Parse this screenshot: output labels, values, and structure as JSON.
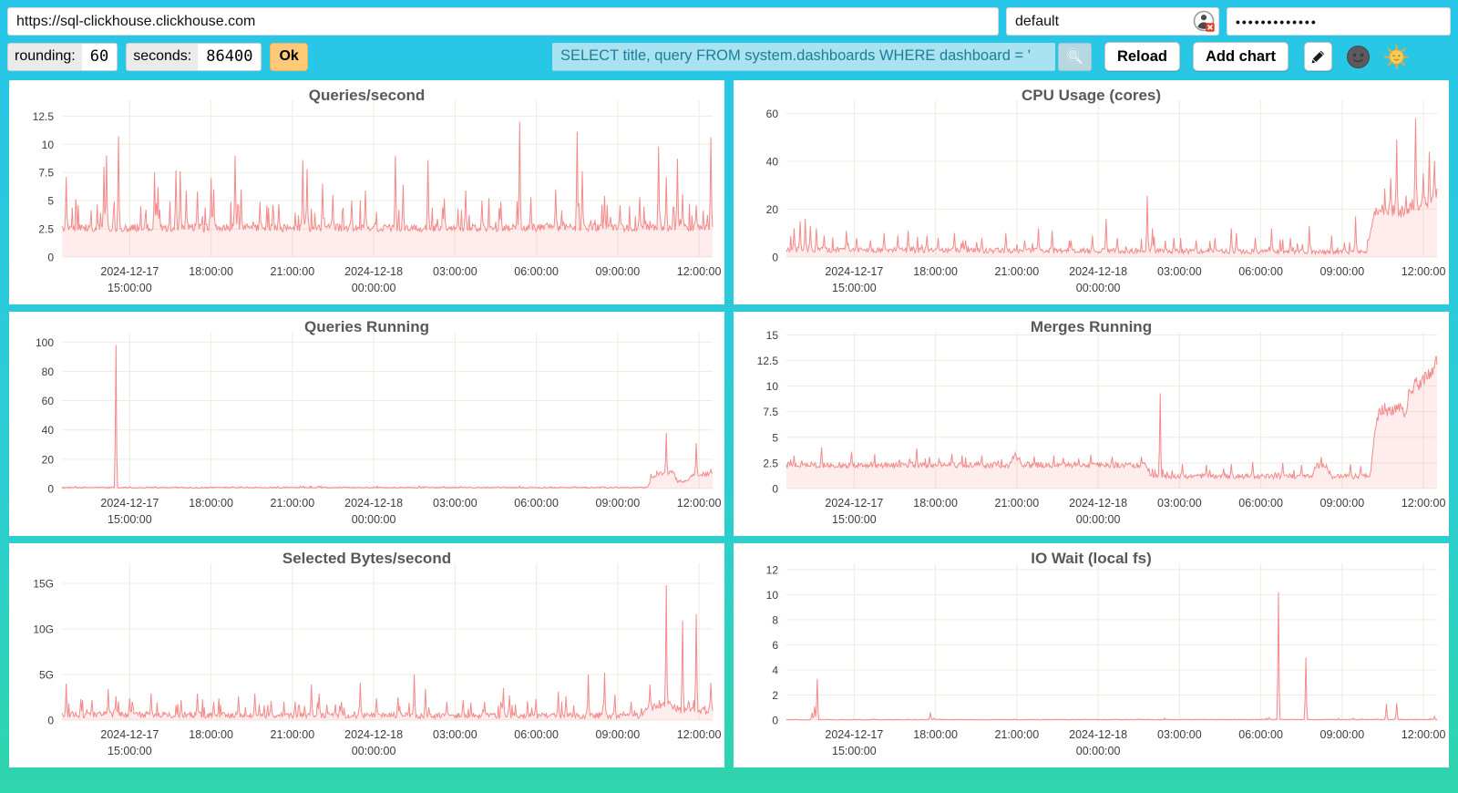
{
  "address_bar": {
    "url": "https://sql-clickhouse.clickhouse.com",
    "user": "default",
    "password_masked": "•••••••••••••",
    "password_manager_icon": "user-badge-x"
  },
  "toolbar": {
    "rounding_label": "rounding:",
    "rounding_value": "60",
    "seconds_label": "seconds:",
    "seconds_value": "86400",
    "ok_label": "Ok",
    "query_value": "SELECT title, query FROM system.dashboards WHERE dashboard = '",
    "search_icon": "magnifier",
    "reload_label": "Reload",
    "add_chart_label": "Add chart",
    "edit_icon": "pencil",
    "theme_dark_icon": "moon-face",
    "theme_light_icon": "sun-face"
  },
  "colors": {
    "background_top": "#27C6E9",
    "background_bottom": "#2FD5AC",
    "line": "#F28B8B",
    "fill": "rgba(255,136,136,0.16)",
    "grid": "#EDECDF",
    "axis_text": "#3C3C3C",
    "title_text": "#585858",
    "query_bg": "#A9E2F1",
    "query_text": "#1F7D99",
    "ok_bg": "#FFC978"
  },
  "x_axis": {
    "window_hours": 24,
    "window_start": "2024-12-17 12:30:00",
    "tick_hours": [
      2.5,
      5.5,
      8.5,
      11.5,
      14.5,
      17.5,
      20.5,
      23.5
    ],
    "tick_labels": [
      [
        "2024-12-17",
        "15:00:00"
      ],
      [
        "18:00:00"
      ],
      [
        "21:00:00"
      ],
      [
        "2024-12-18",
        "00:00:00"
      ],
      [
        "03:00:00"
      ],
      [
        "06:00:00"
      ],
      [
        "09:00:00"
      ],
      [
        "12:00:00"
      ]
    ]
  },
  "chart_data": [
    {
      "type": "area",
      "title": "Queries/second",
      "ymax": 13.9,
      "yticks": [
        0,
        2.5,
        5,
        7.5,
        10,
        12.5
      ],
      "ytick_labels": [
        "0",
        "2.5",
        "5",
        "7.5",
        "10",
        "12.5"
      ],
      "baseline": [
        [
          0,
          2.6
        ],
        [
          24,
          2.6
        ]
      ],
      "noise": {
        "amp": 0.35,
        "amp_rel": 0,
        "spike_prob": 0.12,
        "spike_amp": 2.4
      },
      "spikes": [
        [
          0.15,
          7.1
        ],
        [
          1.55,
          8.0
        ],
        [
          1.65,
          9.0
        ],
        [
          2.1,
          10.7
        ],
        [
          3.4,
          7.5
        ],
        [
          3.55,
          6.2
        ],
        [
          4.2,
          7.7
        ],
        [
          4.35,
          7.6
        ],
        [
          4.6,
          5.9
        ],
        [
          5.0,
          5.8
        ],
        [
          5.5,
          7.0
        ],
        [
          5.6,
          6.0
        ],
        [
          6.4,
          9.0
        ],
        [
          6.6,
          6.0
        ],
        [
          7.3,
          4.9
        ],
        [
          8.0,
          4.7
        ],
        [
          8.9,
          8.6
        ],
        [
          9.05,
          7.8
        ],
        [
          9.6,
          6.5
        ],
        [
          10.0,
          5.5
        ],
        [
          10.7,
          5.0
        ],
        [
          11.2,
          5.9
        ],
        [
          12.3,
          9.0
        ],
        [
          12.6,
          6.4
        ],
        [
          13.5,
          8.6
        ],
        [
          14.1,
          5.2
        ],
        [
          14.9,
          5.9
        ],
        [
          15.5,
          5.0
        ],
        [
          16.2,
          4.9
        ],
        [
          16.9,
          12.0
        ],
        [
          17.3,
          5.3
        ],
        [
          18.2,
          6.0
        ],
        [
          19.0,
          11.1
        ],
        [
          19.2,
          7.6
        ],
        [
          20.0,
          5.4
        ],
        [
          20.6,
          4.6
        ],
        [
          21.3,
          5.3
        ],
        [
          22.0,
          9.8
        ],
        [
          22.3,
          7.1
        ],
        [
          22.7,
          8.7
        ],
        [
          22.9,
          5.6
        ],
        [
          23.4,
          4.6
        ],
        [
          23.95,
          10.6
        ]
      ]
    },
    {
      "type": "area",
      "title": "CPU Usage (cores)",
      "ymax": 65.5,
      "yticks": [
        0,
        20,
        40,
        60
      ],
      "ytick_labels": [
        "0",
        "20",
        "40",
        "60"
      ],
      "baseline": [
        [
          0,
          3
        ],
        [
          1.2,
          3
        ],
        [
          13,
          2.5
        ],
        [
          21.4,
          2
        ],
        [
          21.7,
          19
        ],
        [
          22.2,
          20
        ],
        [
          22.8,
          19
        ],
        [
          23.2,
          23
        ],
        [
          23.6,
          22
        ],
        [
          24,
          27
        ]
      ],
      "noise": {
        "amp": 0.8,
        "amp_rel": 0.1,
        "spike_prob": 0.09,
        "spike_amp": 5
      },
      "spikes": [
        [
          0.3,
          12
        ],
        [
          0.5,
          15
        ],
        [
          0.7,
          16
        ],
        [
          0.9,
          13
        ],
        [
          1.1,
          12
        ],
        [
          1.4,
          9
        ],
        [
          2.2,
          11
        ],
        [
          2.6,
          8
        ],
        [
          3.1,
          7
        ],
        [
          3.6,
          10
        ],
        [
          4.1,
          9
        ],
        [
          4.5,
          11
        ],
        [
          5.2,
          9
        ],
        [
          5.6,
          8
        ],
        [
          6.2,
          10
        ],
        [
          6.6,
          7
        ],
        [
          7.2,
          8
        ],
        [
          8.1,
          10
        ],
        [
          8.8,
          7
        ],
        [
          9.3,
          12
        ],
        [
          9.8,
          11
        ],
        [
          10.5,
          7
        ],
        [
          11.3,
          9
        ],
        [
          11.8,
          16
        ],
        [
          12.2,
          8
        ],
        [
          13.3,
          25.5
        ],
        [
          13.5,
          12
        ],
        [
          14.3,
          8
        ],
        [
          15.1,
          7
        ],
        [
          15.8,
          8
        ],
        [
          16.4,
          12
        ],
        [
          16.6,
          10
        ],
        [
          17.3,
          8
        ],
        [
          17.9,
          12
        ],
        [
          18.6,
          8
        ],
        [
          19.3,
          13
        ],
        [
          20.1,
          9
        ],
        [
          20.6,
          6
        ],
        [
          21.0,
          17
        ],
        [
          22.3,
          33
        ],
        [
          22.5,
          49
        ],
        [
          23.2,
          58
        ],
        [
          23.5,
          35
        ],
        [
          23.7,
          44
        ],
        [
          23.9,
          40
        ]
      ]
    },
    {
      "type": "area",
      "title": "Queries Running",
      "ymax": 107,
      "yticks": [
        0,
        20,
        40,
        60,
        80,
        100
      ],
      "ytick_labels": [
        "0",
        "20",
        "40",
        "60",
        "80",
        "100"
      ],
      "baseline": [
        [
          0,
          0.7
        ],
        [
          21.6,
          0.7
        ],
        [
          21.75,
          8
        ],
        [
          22.1,
          10
        ],
        [
          22.55,
          11
        ],
        [
          22.7,
          5
        ],
        [
          23.1,
          5
        ],
        [
          23.25,
          9
        ],
        [
          23.6,
          10
        ],
        [
          24,
          10
        ]
      ],
      "noise": {
        "amp": 0.3,
        "amp_rel": 0.12,
        "spike_prob": 0.04,
        "spike_amp": 0.9
      },
      "spikes": [
        [
          0.5,
          1.5
        ],
        [
          2.0,
          98
        ],
        [
          6.3,
          1.2
        ],
        [
          9.5,
          1.5
        ],
        [
          13.2,
          1.8
        ],
        [
          16.1,
          1.2
        ],
        [
          18.9,
          1.5
        ],
        [
          22.3,
          38
        ],
        [
          23.4,
          31
        ],
        [
          23.95,
          13
        ]
      ]
    },
    {
      "type": "area",
      "title": "Merges Running",
      "ymax": 15.3,
      "yticks": [
        0,
        2.5,
        5,
        7.5,
        10,
        12.5,
        15
      ],
      "ytick_labels": [
        "0",
        "2.5",
        "5",
        "7.5",
        "10",
        "12.5",
        "15"
      ],
      "baseline": [
        [
          0,
          2.3
        ],
        [
          8.2,
          2.3
        ],
        [
          8.35,
          3.1
        ],
        [
          8.6,
          3.1
        ],
        [
          8.7,
          2.3
        ],
        [
          13.25,
          2.3
        ],
        [
          13.4,
          1.2
        ],
        [
          19.4,
          1.2
        ],
        [
          19.5,
          2.2
        ],
        [
          19.95,
          2.2
        ],
        [
          20.05,
          1.2
        ],
        [
          21.55,
          1.2
        ],
        [
          21.7,
          5.6
        ],
        [
          21.9,
          7.8
        ],
        [
          22.3,
          7.5
        ],
        [
          22.6,
          7.9
        ],
        [
          22.8,
          7.4
        ],
        [
          23.0,
          9.0
        ],
        [
          23.2,
          10.5
        ],
        [
          23.4,
          10.0
        ],
        [
          23.6,
          11.2
        ],
        [
          23.8,
          11.6
        ],
        [
          24,
          12.8
        ]
      ],
      "noise": {
        "amp": 0.18,
        "amp_rel": 0.05,
        "spike_prob": 0.08,
        "spike_amp": 0.7
      },
      "spikes": [
        [
          1.3,
          4.0
        ],
        [
          2.4,
          3.6
        ],
        [
          4.8,
          3.9
        ],
        [
          6.1,
          3.4
        ],
        [
          8.45,
          3.5
        ],
        [
          10.2,
          3.0
        ],
        [
          12.0,
          3.1
        ],
        [
          13.8,
          9.3
        ],
        [
          14.6,
          2.4
        ],
        [
          15.5,
          2.3
        ],
        [
          16.4,
          2.4
        ],
        [
          17.2,
          2.6
        ],
        [
          18.3,
          2.5
        ],
        [
          19.0,
          2.3
        ],
        [
          20.8,
          2.4
        ],
        [
          21.2,
          2.2
        ]
      ]
    },
    {
      "type": "area",
      "title": "Selected Bytes/second",
      "unit": "G",
      "ymax": 17.2,
      "yticks": [
        0,
        5,
        10,
        15
      ],
      "ytick_labels": [
        "0",
        "5G",
        "10G",
        "15G"
      ],
      "baseline": [
        [
          0,
          0.6
        ],
        [
          21.4,
          0.45
        ],
        [
          21.6,
          1.3
        ],
        [
          22.4,
          1.6
        ],
        [
          22.8,
          1.1
        ],
        [
          23.3,
          1.2
        ],
        [
          23.7,
          1.0
        ],
        [
          24,
          1.2
        ]
      ],
      "noise": {
        "amp": 0.25,
        "amp_rel": 0.15,
        "spike_prob": 0.12,
        "spike_amp": 1.4
      },
      "spikes": [
        [
          0.15,
          4.0
        ],
        [
          0.7,
          2.3
        ],
        [
          1.1,
          2.2
        ],
        [
          1.7,
          3.4
        ],
        [
          2.0,
          2.6
        ],
        [
          2.5,
          2.4
        ],
        [
          3.3,
          2.9
        ],
        [
          4.4,
          2.2
        ],
        [
          5.0,
          2.9
        ],
        [
          5.6,
          2.0
        ],
        [
          6.5,
          2.6
        ],
        [
          7.1,
          2.9
        ],
        [
          7.7,
          2.1
        ],
        [
          8.6,
          2.0
        ],
        [
          9.2,
          3.9
        ],
        [
          9.5,
          2.9
        ],
        [
          10.3,
          2.0
        ],
        [
          11.0,
          4.1
        ],
        [
          11.6,
          2.4
        ],
        [
          12.4,
          2.5
        ],
        [
          13.0,
          5.0
        ],
        [
          13.4,
          3.4
        ],
        [
          14.2,
          2.0
        ],
        [
          14.8,
          2.2
        ],
        [
          15.6,
          2.0
        ],
        [
          16.3,
          3.5
        ],
        [
          16.5,
          2.7
        ],
        [
          17.5,
          2.3
        ],
        [
          18.3,
          3.1
        ],
        [
          18.6,
          2.6
        ],
        [
          19.4,
          5.0
        ],
        [
          20.0,
          5.2
        ],
        [
          20.4,
          2.8
        ],
        [
          21.0,
          2.0
        ],
        [
          21.7,
          3.9
        ],
        [
          22.3,
          14.8
        ],
        [
          22.9,
          10.9
        ],
        [
          23.4,
          11.6
        ],
        [
          23.95,
          4.1
        ]
      ]
    },
    {
      "type": "area",
      "title": "IO Wait (local fs)",
      "ymax": 12.5,
      "yticks": [
        0,
        2,
        4,
        6,
        8,
        10,
        12
      ],
      "ytick_labels": [
        "0",
        "2",
        "4",
        "6",
        "8",
        "10",
        "12"
      ],
      "baseline": [
        [
          0,
          0.03
        ],
        [
          24,
          0.05
        ]
      ],
      "noise": {
        "amp": 0.02,
        "amp_rel": 0.2,
        "spike_prob": 0.015,
        "spike_amp": 0.1
      },
      "spikes": [
        [
          0.95,
          0.6
        ],
        [
          1.05,
          1.1
        ],
        [
          1.15,
          3.3
        ],
        [
          3.2,
          0.1
        ],
        [
          5.3,
          0.6
        ],
        [
          5.45,
          0.15
        ],
        [
          9.0,
          0.07
        ],
        [
          13.0,
          0.1
        ],
        [
          14.0,
          0.08
        ],
        [
          17.8,
          0.2
        ],
        [
          18.15,
          10.2
        ],
        [
          19.15,
          5.0
        ],
        [
          20.9,
          0.15
        ],
        [
          22.15,
          1.3
        ],
        [
          22.5,
          1.35
        ],
        [
          23.9,
          0.3
        ]
      ]
    }
  ]
}
